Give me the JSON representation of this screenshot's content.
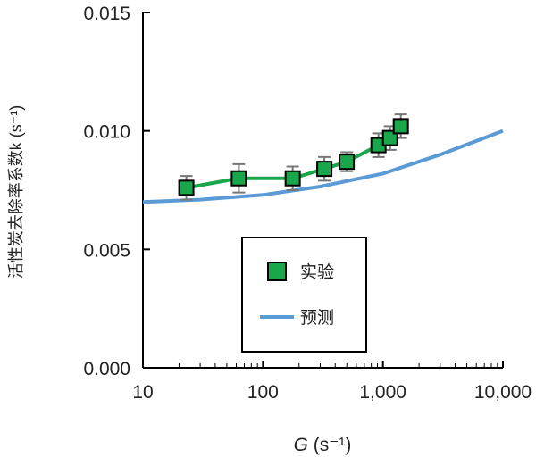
{
  "chart_data": {
    "type": "line",
    "xlabel": "G (s⁻¹)",
    "xlabel_italic": "G",
    "xlabel_unit": " (s⁻¹)",
    "ylabel": "活性炭去除率系数k (s⁻¹)",
    "xscale": "log",
    "xlim": [
      10,
      10000
    ],
    "ylim": [
      0,
      0.015
    ],
    "xticks": [
      10,
      100,
      1000,
      10000
    ],
    "xtick_labels": [
      "10",
      "100",
      "1,000",
      "10,000"
    ],
    "yticks": [
      0,
      0.005,
      0.01,
      0.015
    ],
    "ytick_labels": [
      "0.000",
      "0.005",
      "0.010",
      "0.015"
    ],
    "grid": false,
    "legend_position": "center",
    "series": [
      {
        "name": "实验",
        "color": "#1aa64a",
        "marker": "square",
        "x": [
          23,
          63,
          177,
          325,
          499,
          918,
          1148,
          1409
        ],
        "y": [
          0.0076,
          0.008,
          0.008,
          0.0084,
          0.0087,
          0.0094,
          0.0097,
          0.0102
        ],
        "error": [
          0.0005,
          0.0006,
          0.0005,
          0.0005,
          0.0004,
          0.0005,
          0.0005,
          0.0005
        ]
      },
      {
        "name": "预测",
        "color": "#5b9bd5",
        "x": [
          10,
          30,
          100,
          300,
          1000,
          3000,
          10000
        ],
        "y": [
          0.007,
          0.0071,
          0.0073,
          0.00765,
          0.0082,
          0.009,
          0.01
        ]
      }
    ]
  }
}
